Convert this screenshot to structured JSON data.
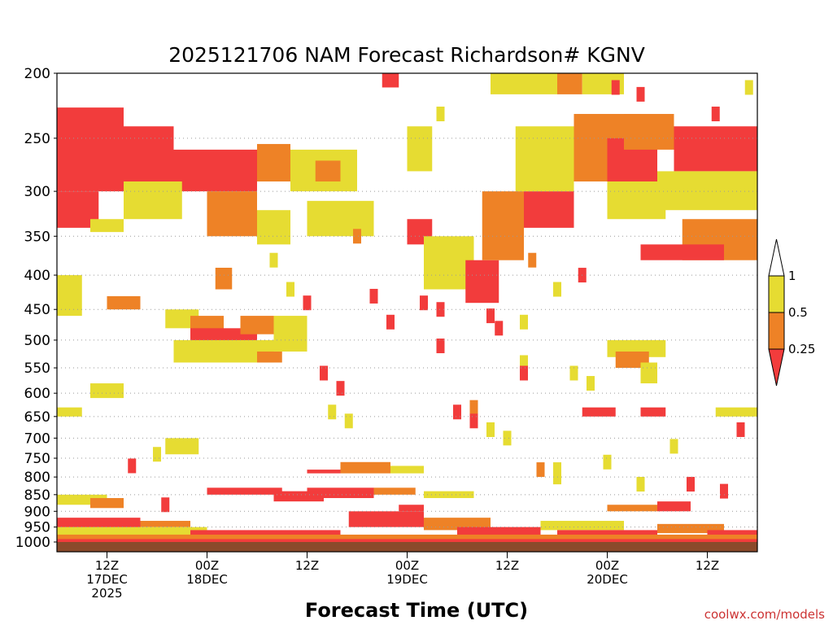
{
  "chart_data": {
    "type": "heatmap",
    "title": "2025121706 NAM Forecast Richardson# KGNV",
    "xlabel": "Forecast Time (UTC)",
    "credit": "coolwx.com/models",
    "y_scale": "log",
    "y_inverted": true,
    "ylim": [
      1000,
      200
    ],
    "y_ticks": [
      200,
      250,
      300,
      350,
      400,
      450,
      500,
      550,
      600,
      650,
      700,
      750,
      800,
      850,
      900,
      950,
      1000
    ],
    "x_ticks": [
      {
        "hour": 6,
        "lines": [
          "12Z",
          "17DEC",
          "2025"
        ]
      },
      {
        "hour": 18,
        "lines": [
          "00Z",
          "18DEC"
        ]
      },
      {
        "hour": 30,
        "lines": [
          "12Z"
        ]
      },
      {
        "hour": 42,
        "lines": [
          "00Z",
          "19DEC"
        ]
      },
      {
        "hour": 54,
        "lines": [
          "12Z"
        ]
      },
      {
        "hour": 66,
        "lines": [
          "00Z",
          "20DEC"
        ]
      },
      {
        "hour": 78,
        "lines": [
          "12Z"
        ]
      }
    ],
    "xlim_hours": [
      0,
      84
    ],
    "grid": "dotted-horizontal",
    "colorbar": {
      "boundaries": [
        0.25,
        0.5,
        1
      ],
      "labels": [
        "1",
        "0.5",
        "0.25"
      ],
      "colors": {
        "lt_0_25": "#f23c3c",
        "0_25_to_0_5": "#ee8226",
        "0_5_to_1": "#e6dc32"
      },
      "ground_color": "#8b4a2b"
    },
    "bands": [
      {
        "p": [
          225,
          300
        ],
        "t": [
          0,
          8
        ],
        "cat": 3
      },
      {
        "p": [
          240,
          310
        ],
        "t": [
          8,
          14
        ],
        "cat": 3
      },
      {
        "p": [
          260,
          300
        ],
        "t": [
          14,
          24
        ],
        "cat": 3
      },
      {
        "p": [
          255,
          290
        ],
        "t": [
          24,
          28
        ],
        "cat": 2
      },
      {
        "p": [
          300,
          340
        ],
        "t": [
          0,
          5
        ],
        "cat": 3
      },
      {
        "p": [
          330,
          345
        ],
        "t": [
          4,
          8
        ],
        "cat": 1
      },
      {
        "p": [
          290,
          330
        ],
        "t": [
          8,
          15
        ],
        "cat": 1
      },
      {
        "p": [
          300,
          350
        ],
        "t": [
          18,
          24
        ],
        "cat": 2
      },
      {
        "p": [
          320,
          360
        ],
        "t": [
          24,
          28
        ],
        "cat": 1
      },
      {
        "p": [
          260,
          300
        ],
        "t": [
          28,
          36
        ],
        "cat": 1
      },
      {
        "p": [
          270,
          290
        ],
        "t": [
          31,
          34
        ],
        "cat": 2
      },
      {
        "p": [
          240,
          280
        ],
        "t": [
          42,
          45
        ],
        "cat": 1
      },
      {
        "p": [
          310,
          350
        ],
        "t": [
          30,
          38
        ],
        "cat": 1
      },
      {
        "p": [
          330,
          360
        ],
        "t": [
          42,
          45
        ],
        "cat": 3
      },
      {
        "p": [
          350,
          420
        ],
        "t": [
          44,
          50
        ],
        "cat": 1
      },
      {
        "p": [
          380,
          440
        ],
        "t": [
          49,
          53
        ],
        "cat": 3
      },
      {
        "p": [
          300,
          380
        ],
        "t": [
          51,
          56
        ],
        "cat": 2
      },
      {
        "p": [
          300,
          340
        ],
        "t": [
          56,
          62
        ],
        "cat": 3
      },
      {
        "p": [
          240,
          300
        ],
        "t": [
          55,
          62
        ],
        "cat": 1
      },
      {
        "p": [
          230,
          290
        ],
        "t": [
          62,
          70
        ],
        "cat": 2
      },
      {
        "p": [
          250,
          300
        ],
        "t": [
          66,
          72
        ],
        "cat": 3
      },
      {
        "p": [
          290,
          330
        ],
        "t": [
          66,
          73
        ],
        "cat": 1
      },
      {
        "p": [
          200,
          215
        ],
        "t": [
          52,
          60
        ],
        "cat": 1
      },
      {
        "p": [
          200,
          215
        ],
        "t": [
          60,
          63
        ],
        "cat": 2
      },
      {
        "p": [
          200,
          215
        ],
        "t": [
          63,
          68
        ],
        "cat": 1
      },
      {
        "p": [
          230,
          260
        ],
        "t": [
          68,
          74
        ],
        "cat": 2
      },
      {
        "p": [
          240,
          280
        ],
        "t": [
          74,
          84
        ],
        "cat": 3
      },
      {
        "p": [
          280,
          320
        ],
        "t": [
          72,
          84
        ],
        "cat": 1
      },
      {
        "p": [
          330,
          380
        ],
        "t": [
          75,
          84
        ],
        "cat": 2
      },
      {
        "p": [
          360,
          380
        ],
        "t": [
          70,
          80
        ],
        "cat": 3
      },
      {
        "p": [
          200,
          210
        ],
        "t": [
          39,
          41
        ],
        "cat": 3
      },
      {
        "p": [
          400,
          460
        ],
        "t": [
          0,
          3
        ],
        "cat": 1
      },
      {
        "p": [
          430,
          450
        ],
        "t": [
          6,
          10
        ],
        "cat": 2
      },
      {
        "p": [
          450,
          480
        ],
        "t": [
          13,
          17
        ],
        "cat": 1
      },
      {
        "p": [
          460,
          500
        ],
        "t": [
          16,
          20
        ],
        "cat": 2
      },
      {
        "p": [
          480,
          510
        ],
        "t": [
          16,
          24
        ],
        "cat": 3
      },
      {
        "p": [
          460,
          490
        ],
        "t": [
          22,
          26
        ],
        "cat": 2
      },
      {
        "p": [
          500,
          540
        ],
        "t": [
          14,
          26
        ],
        "cat": 1
      },
      {
        "p": [
          520,
          540
        ],
        "t": [
          24,
          27
        ],
        "cat": 2
      },
      {
        "p": [
          460,
          520
        ],
        "t": [
          26,
          30
        ],
        "cat": 1
      },
      {
        "p": [
          390,
          420
        ],
        "t": [
          19,
          21
        ],
        "cat": 2
      },
      {
        "p": [
          500,
          530
        ],
        "t": [
          66,
          73
        ],
        "cat": 1
      },
      {
        "p": [
          520,
          550
        ],
        "t": [
          67,
          71
        ],
        "cat": 2
      },
      {
        "p": [
          540,
          580
        ],
        "t": [
          70,
          72
        ],
        "cat": 1
      },
      {
        "p": [
          630,
          650
        ],
        "t": [
          63,
          67
        ],
        "cat": 3
      },
      {
        "p": [
          630,
          650
        ],
        "t": [
          70,
          73
        ],
        "cat": 3
      },
      {
        "p": [
          630,
          650
        ],
        "t": [
          0,
          3
        ],
        "cat": 1
      },
      {
        "p": [
          630,
          650
        ],
        "t": [
          79,
          84
        ],
        "cat": 1
      },
      {
        "p": [
          580,
          610
        ],
        "t": [
          4,
          8
        ],
        "cat": 1
      },
      {
        "p": [
          700,
          740
        ],
        "t": [
          13,
          17
        ],
        "cat": 1
      },
      {
        "p": [
          780,
          790
        ],
        "t": [
          30,
          34
        ],
        "cat": 3
      },
      {
        "p": [
          760,
          790
        ],
        "t": [
          34,
          40
        ],
        "cat": 2
      },
      {
        "p": [
          770,
          790
        ],
        "t": [
          40,
          44
        ],
        "cat": 1
      },
      {
        "p": [
          830,
          850
        ],
        "t": [
          18,
          27
        ],
        "cat": 3
      },
      {
        "p": [
          840,
          870
        ],
        "t": [
          26,
          32
        ],
        "cat": 3
      },
      {
        "p": [
          830,
          860
        ],
        "t": [
          30,
          38
        ],
        "cat": 3
      },
      {
        "p": [
          830,
          850
        ],
        "t": [
          38,
          43
        ],
        "cat": 2
      },
      {
        "p": [
          840,
          860
        ],
        "t": [
          44,
          50
        ],
        "cat": 1
      },
      {
        "p": [
          850,
          880
        ],
        "t": [
          0,
          6
        ],
        "cat": 1
      },
      {
        "p": [
          860,
          890
        ],
        "t": [
          4,
          8
        ],
        "cat": 2
      },
      {
        "p": [
          880,
          900
        ],
        "t": [
          41,
          44
        ],
        "cat": 3
      },
      {
        "p": [
          870,
          900
        ],
        "t": [
          72,
          76
        ],
        "cat": 3
      },
      {
        "p": [
          880,
          900
        ],
        "t": [
          66,
          72
        ],
        "cat": 2
      },
      {
        "p": [
          920,
          960
        ],
        "t": [
          0,
          10
        ],
        "cat": 3
      },
      {
        "p": [
          930,
          950
        ],
        "t": [
          10,
          16
        ],
        "cat": 2
      },
      {
        "p": [
          950,
          980
        ],
        "t": [
          0,
          18
        ],
        "cat": 1
      },
      {
        "p": [
          960,
          990
        ],
        "t": [
          16,
          34
        ],
        "cat": 3
      },
      {
        "p": [
          900,
          950
        ],
        "t": [
          35,
          44
        ],
        "cat": 3
      },
      {
        "p": [
          920,
          960
        ],
        "t": [
          44,
          52
        ],
        "cat": 2
      },
      {
        "p": [
          950,
          980
        ],
        "t": [
          48,
          58
        ],
        "cat": 3
      },
      {
        "p": [
          930,
          960
        ],
        "t": [
          58,
          68
        ],
        "cat": 1
      },
      {
        "p": [
          960,
          990
        ],
        "t": [
          60,
          72
        ],
        "cat": 3
      },
      {
        "p": [
          940,
          970
        ],
        "t": [
          72,
          80
        ],
        "cat": 2
      },
      {
        "p": [
          960,
          990
        ],
        "t": [
          78,
          84
        ],
        "cat": 3
      },
      {
        "p": [
          985,
          1000
        ],
        "t": [
          0,
          84
        ],
        "cat": 3
      },
      {
        "p": [
          975,
          990
        ],
        "t": [
          0,
          84
        ],
        "cat": 2
      }
    ],
    "specks": [
      {
        "p": 430,
        "t": 38,
        "cat": 3
      },
      {
        "p": 440,
        "t": 44,
        "cat": 3
      },
      {
        "p": 450,
        "t": 46,
        "cat": 3
      },
      {
        "p": 470,
        "t": 40,
        "cat": 3
      },
      {
        "p": 480,
        "t": 53,
        "cat": 3
      },
      {
        "p": 470,
        "t": 56,
        "cat": 1
      },
      {
        "p": 460,
        "t": 52,
        "cat": 3
      },
      {
        "p": 510,
        "t": 46,
        "cat": 3
      },
      {
        "p": 540,
        "t": 56,
        "cat": 1
      },
      {
        "p": 560,
        "t": 56,
        "cat": 3
      },
      {
        "p": 560,
        "t": 32,
        "cat": 3
      },
      {
        "p": 590,
        "t": 34,
        "cat": 3
      },
      {
        "p": 640,
        "t": 33,
        "cat": 1
      },
      {
        "p": 660,
        "t": 35,
        "cat": 1
      },
      {
        "p": 640,
        "t": 48,
        "cat": 3
      },
      {
        "p": 630,
        "t": 50,
        "cat": 2
      },
      {
        "p": 660,
        "t": 50,
        "cat": 3
      },
      {
        "p": 680,
        "t": 52,
        "cat": 1
      },
      {
        "p": 700,
        "t": 54,
        "cat": 1
      },
      {
        "p": 560,
        "t": 62,
        "cat": 1
      },
      {
        "p": 580,
        "t": 64,
        "cat": 1
      },
      {
        "p": 720,
        "t": 74,
        "cat": 1
      },
      {
        "p": 760,
        "t": 66,
        "cat": 1
      },
      {
        "p": 780,
        "t": 58,
        "cat": 2
      },
      {
        "p": 800,
        "t": 60,
        "cat": 1
      },
      {
        "p": 820,
        "t": 76,
        "cat": 3
      },
      {
        "p": 840,
        "t": 80,
        "cat": 3
      },
      {
        "p": 680,
        "t": 82,
        "cat": 3
      },
      {
        "p": 770,
        "t": 9,
        "cat": 3
      },
      {
        "p": 740,
        "t": 12,
        "cat": 1
      },
      {
        "p": 880,
        "t": 13,
        "cat": 3
      },
      {
        "p": 820,
        "t": 70,
        "cat": 1
      },
      {
        "p": 780,
        "t": 60,
        "cat": 1
      },
      {
        "p": 420,
        "t": 60,
        "cat": 1
      },
      {
        "p": 400,
        "t": 63,
        "cat": 3
      },
      {
        "p": 380,
        "t": 57,
        "cat": 2
      },
      {
        "p": 420,
        "t": 28,
        "cat": 1
      },
      {
        "p": 440,
        "t": 30,
        "cat": 3
      },
      {
        "p": 380,
        "t": 26,
        "cat": 1
      },
      {
        "p": 350,
        "t": 36,
        "cat": 2
      },
      {
        "p": 230,
        "t": 46,
        "cat": 1
      },
      {
        "p": 210,
        "t": 67,
        "cat": 3
      },
      {
        "p": 215,
        "t": 70,
        "cat": 3
      },
      {
        "p": 230,
        "t": 79,
        "cat": 3
      },
      {
        "p": 210,
        "t": 83,
        "cat": 1
      }
    ]
  }
}
